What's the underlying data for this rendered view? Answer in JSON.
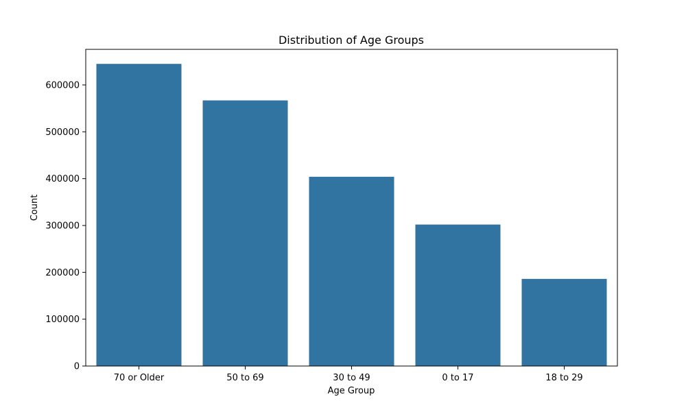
{
  "chart_data": {
    "type": "bar",
    "title": "Distribution of Age Groups",
    "xlabel": "Age Group",
    "ylabel": "Count",
    "categories": [
      "70 or Older",
      "50 to 69",
      "30 to 49",
      "0 to 17",
      "18 to 29"
    ],
    "values": [
      645000,
      567000,
      404000,
      302000,
      186000
    ],
    "ylim": [
      0,
      676000
    ],
    "yticks": [
      0,
      100000,
      200000,
      300000,
      400000,
      500000,
      600000
    ],
    "ytick_labels": [
      "0",
      "100000",
      "200000",
      "300000",
      "400000",
      "500000",
      "600000"
    ],
    "grid": false,
    "legend": "none",
    "bar_color": "#3274a1"
  }
}
